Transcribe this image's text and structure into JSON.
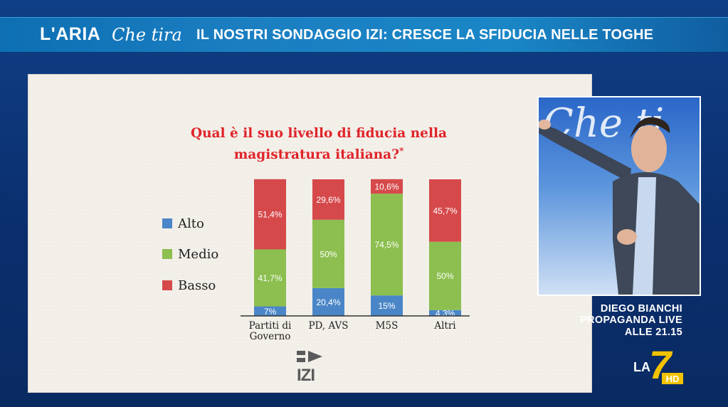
{
  "banner": {
    "logo_main": "L'ARIA",
    "logo_script": "Che tira",
    "headline": "IL NOSTRI SONDAGGIO IZI: CRESCE LA SFIDUCIA NELLE TOGHE"
  },
  "caption": {
    "line1": "DIEGO BIANCHI",
    "line2": "PROPAGANDA LIVE",
    "line3": "ALLE 21.15"
  },
  "channel_logo": {
    "main": "LA",
    "number": "7",
    "badge": "HD"
  },
  "source_logo": "IZI",
  "inset": {
    "backdrop_text": "Che ti"
  },
  "colors": {
    "alto": "#4a86c7",
    "medio": "#8cbf4f",
    "basso": "#d6494b",
    "question": "#e0242a"
  },
  "chart_data": {
    "type": "bar",
    "stacked": true,
    "title_line1": "Qual è il suo livello di fiducia nella",
    "title_line2": "magistratura italiana?",
    "title_mark": "*",
    "categories": [
      "Partiti di\nGoverno",
      "PD, AVS",
      "M5S",
      "Altri"
    ],
    "series": [
      {
        "name": "Alto",
        "color": "#4a86c7",
        "values": [
          7,
          20.4,
          15,
          4.3
        ],
        "labels": [
          "7%",
          "20,4%",
          "15%",
          "4,3%"
        ]
      },
      {
        "name": "Medio",
        "color": "#8cbf4f",
        "values": [
          41.7,
          50,
          74.5,
          50
        ],
        "labels": [
          "41,7%",
          "50%",
          "74,5%",
          "50%"
        ]
      },
      {
        "name": "Basso",
        "color": "#d6494b",
        "values": [
          51.4,
          29.6,
          10.6,
          45.7
        ],
        "labels": [
          "51,4%",
          "29,6%",
          "10,6%",
          "45,7%"
        ]
      }
    ],
    "legend_position": "left",
    "ylim": [
      0,
      100
    ],
    "grid": false
  }
}
